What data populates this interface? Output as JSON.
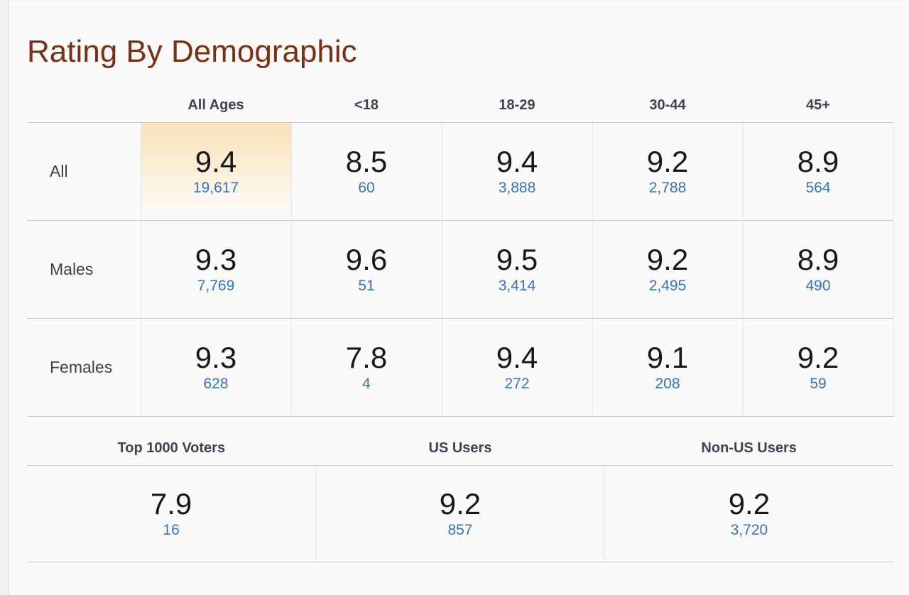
{
  "page": {
    "title": "Rating By Demographic"
  },
  "colors": {
    "title_text": "#7c2f10",
    "header_text": "#3d4258",
    "rating_text": "#17171c",
    "votes_link": "#3272c8",
    "highlight_cell_top": "#f9e2b8",
    "row_border": "#c9c9c9",
    "column_border": "#e4e4e4",
    "card_background": "#fbfafa"
  },
  "demographics_table": {
    "age_columns": [
      "All Ages",
      "<18",
      "18-29",
      "30-44",
      "45+"
    ],
    "rows": [
      {
        "label": "All",
        "cells": [
          {
            "rating": "9.4",
            "votes": "19,617"
          },
          {
            "rating": "8.5",
            "votes": "60"
          },
          {
            "rating": "9.4",
            "votes": "3,888"
          },
          {
            "rating": "9.2",
            "votes": "2,788"
          },
          {
            "rating": "8.9",
            "votes": "564"
          }
        ]
      },
      {
        "label": "Males",
        "cells": [
          {
            "rating": "9.3",
            "votes": "7,769"
          },
          {
            "rating": "9.6",
            "votes": "51"
          },
          {
            "rating": "9.5",
            "votes": "3,414"
          },
          {
            "rating": "9.2",
            "votes": "2,495"
          },
          {
            "rating": "8.9",
            "votes": "490"
          }
        ]
      },
      {
        "label": "Females",
        "cells": [
          {
            "rating": "9.3",
            "votes": "628"
          },
          {
            "rating": "7.8",
            "votes": "4"
          },
          {
            "rating": "9.4",
            "votes": "272"
          },
          {
            "rating": "9.1",
            "votes": "208"
          },
          {
            "rating": "9.2",
            "votes": "59"
          }
        ]
      }
    ]
  },
  "segments_table": {
    "columns": [
      {
        "label": "Top 1000 Voters",
        "rating": "7.9",
        "votes": "16"
      },
      {
        "label": "US Users",
        "rating": "9.2",
        "votes": "857"
      },
      {
        "label": "Non-US Users",
        "rating": "9.2",
        "votes": "3,720"
      }
    ]
  }
}
